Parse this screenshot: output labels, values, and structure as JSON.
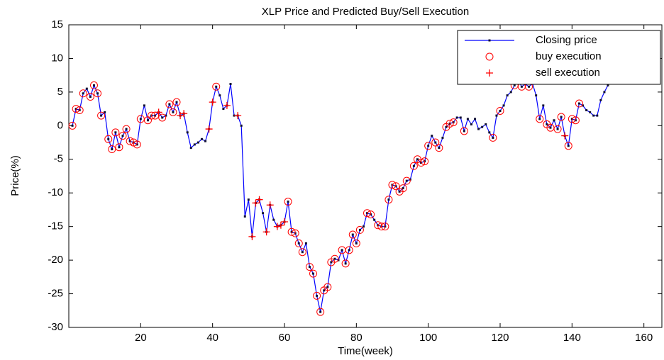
{
  "chart_data": {
    "type": "line",
    "title": "XLP Price and Predicted Buy/Sell Execution",
    "xlabel": "Time(week)",
    "ylabel": "Price(%)",
    "xlim": [
      0,
      165
    ],
    "ylim": [
      -30,
      15
    ],
    "xticks": [
      20,
      40,
      60,
      80,
      100,
      120,
      140,
      160
    ],
    "yticks": [
      -30,
      -25,
      -20,
      -15,
      -10,
      -5,
      0,
      5,
      10,
      15
    ],
    "grid": false,
    "legend": "upper right",
    "series": [
      {
        "name": "Closing price",
        "color": "#0000ff",
        "marker": "dot",
        "line": true,
        "x": [
          1,
          2,
          3,
          4,
          5,
          6,
          7,
          8,
          9,
          10,
          11,
          12,
          13,
          14,
          15,
          16,
          17,
          18,
          19,
          20,
          21,
          22,
          23,
          24,
          25,
          26,
          27,
          28,
          29,
          30,
          31,
          32,
          33,
          34,
          35,
          36,
          37,
          38,
          39,
          40,
          41,
          42,
          43,
          44,
          45,
          46,
          47,
          48,
          49,
          50,
          51,
          52,
          53,
          54,
          55,
          56,
          57,
          58,
          59,
          60,
          61,
          62,
          63,
          64,
          65,
          66,
          67,
          68,
          69,
          70,
          71,
          72,
          73,
          74,
          75,
          76,
          77,
          78,
          79,
          80,
          81,
          82,
          83,
          84,
          85,
          86,
          87,
          88,
          89,
          90,
          91,
          92,
          93,
          94,
          95,
          96,
          97,
          98,
          99,
          100,
          101,
          102,
          103,
          104,
          105,
          106,
          107,
          108,
          109,
          110,
          111,
          112,
          113,
          114,
          115,
          116,
          117,
          118,
          119,
          120,
          121,
          122,
          123,
          124,
          125,
          126,
          127,
          128,
          129,
          130,
          131,
          132,
          133,
          134,
          135,
          136,
          137,
          138,
          139,
          140,
          141,
          142,
          143,
          144,
          145,
          146,
          147,
          148,
          149,
          150,
          151,
          152,
          153,
          154,
          155,
          156,
          157,
          158,
          159,
          160,
          161,
          162,
          163,
          164
        ],
        "values": [
          0,
          2.5,
          2.3,
          4.8,
          5.5,
          4.3,
          6,
          4.8,
          1.5,
          2,
          -2,
          -3.5,
          -1,
          -3.2,
          -1.5,
          -0.5,
          -2.3,
          -2.5,
          -2.8,
          1,
          3,
          0.8,
          1.5,
          1.5,
          2,
          1.2,
          1.5,
          3.2,
          2,
          3.5,
          1.5,
          1.8,
          -1,
          -3.3,
          -2.8,
          -2.5,
          -2,
          -2.3,
          -0.5,
          3.5,
          5.8,
          4.5,
          2.5,
          3,
          6.2,
          1.5,
          1.5,
          0,
          -13.5,
          -11,
          -16.5,
          -11.5,
          -11,
          -13,
          -15.8,
          -11.8,
          -14,
          -15,
          -14.8,
          -14.3,
          -11.3,
          -15.8,
          -16,
          -17.5,
          -18.8,
          -17.5,
          -21,
          -22,
          -25.3,
          -27.7,
          -24.5,
          -24,
          -20.3,
          -19.8,
          -20,
          -18.5,
          -20.5,
          -18.5,
          -16.2,
          -17.5,
          -15.5,
          -15,
          -13,
          -13.2,
          -14,
          -14.8,
          -15,
          -15,
          -11,
          -8.8,
          -9,
          -9.8,
          -9.3,
          -8.2,
          -8,
          -6,
          -5,
          -5.5,
          -5.3,
          -3,
          -1.5,
          -2.5,
          -3.3,
          -1.8,
          -0.2,
          0.3,
          0.5,
          1.2,
          1.2,
          -0.8,
          1,
          0.2,
          1,
          -0.5,
          -0.2,
          0.2,
          -1,
          -1.8,
          1.5,
          2.2,
          3,
          4.5,
          5,
          6,
          6.8,
          5.8,
          6.2,
          5.8,
          6.3,
          4.5,
          1,
          3,
          0.2,
          -0.3,
          0.8,
          -0.5,
          1.3,
          -1.5,
          -3,
          1,
          0.8,
          3.3,
          3,
          2.3,
          2,
          1.5,
          1.5,
          3.8,
          5,
          6,
          7.5,
          9,
          9.5,
          10,
          11,
          11.5,
          12,
          12.5,
          12,
          11.5,
          11,
          12,
          13,
          13.5
        ]
      },
      {
        "name": "buy execution",
        "color": "#ff0000",
        "marker": "circle",
        "line": false,
        "x": [
          1,
          2,
          3,
          4,
          6,
          7,
          8,
          9,
          11,
          12,
          13,
          14,
          15,
          16,
          17,
          18,
          19,
          20,
          22,
          23,
          24,
          26,
          28,
          29,
          30,
          41,
          61,
          62,
          63,
          64,
          65,
          67,
          68,
          69,
          70,
          71,
          72,
          73,
          74,
          76,
          77,
          78,
          79,
          80,
          81,
          83,
          84,
          86,
          87,
          88,
          89,
          90,
          91,
          92,
          93,
          94,
          96,
          97,
          98,
          99,
          100,
          102,
          103,
          105,
          106,
          107,
          110,
          118,
          120,
          124,
          126,
          128,
          131,
          133,
          134,
          136,
          137,
          139,
          140,
          141,
          142
        ],
        "values": [
          0,
          2.5,
          2.3,
          4.8,
          4.3,
          6,
          4.8,
          1.5,
          -2,
          -3.5,
          -1,
          -3.2,
          -1.5,
          -0.5,
          -2.3,
          -2.5,
          -2.8,
          1,
          0.8,
          1.5,
          1.5,
          1.2,
          3.2,
          2,
          3.5,
          5.8,
          -11.3,
          -15.8,
          -16,
          -17.5,
          -18.8,
          -21,
          -22,
          -25.3,
          -27.7,
          -24.5,
          -24,
          -20.3,
          -19.8,
          -18.5,
          -20.5,
          -18.5,
          -16.2,
          -17.5,
          -15.5,
          -13,
          -13.2,
          -14.8,
          -15,
          -15,
          -11,
          -8.8,
          -9,
          -9.8,
          -9.3,
          -8.2,
          -6,
          -5,
          -5.5,
          -5.3,
          -3,
          -2.5,
          -3.3,
          -0.2,
          0.3,
          0.5,
          -0.8,
          -1.8,
          2.2,
          6,
          5.8,
          5.8,
          1,
          0.2,
          -0.3,
          -0.5,
          1.3,
          -3,
          1,
          0.8,
          3.3
        ]
      },
      {
        "name": "sell execution",
        "color": "#ff0000",
        "marker": "plus",
        "line": false,
        "x": [
          25,
          31,
          32,
          39,
          40,
          44,
          47,
          51,
          52,
          53,
          55,
          56,
          58,
          59,
          60,
          138
        ],
        "values": [
          2,
          1.5,
          1.8,
          -0.5,
          3.5,
          3,
          1.5,
          -16.5,
          -11.5,
          -11,
          -15.8,
          -11.8,
          -15,
          -14.8,
          -14.3,
          -1.5
        ]
      }
    ]
  }
}
